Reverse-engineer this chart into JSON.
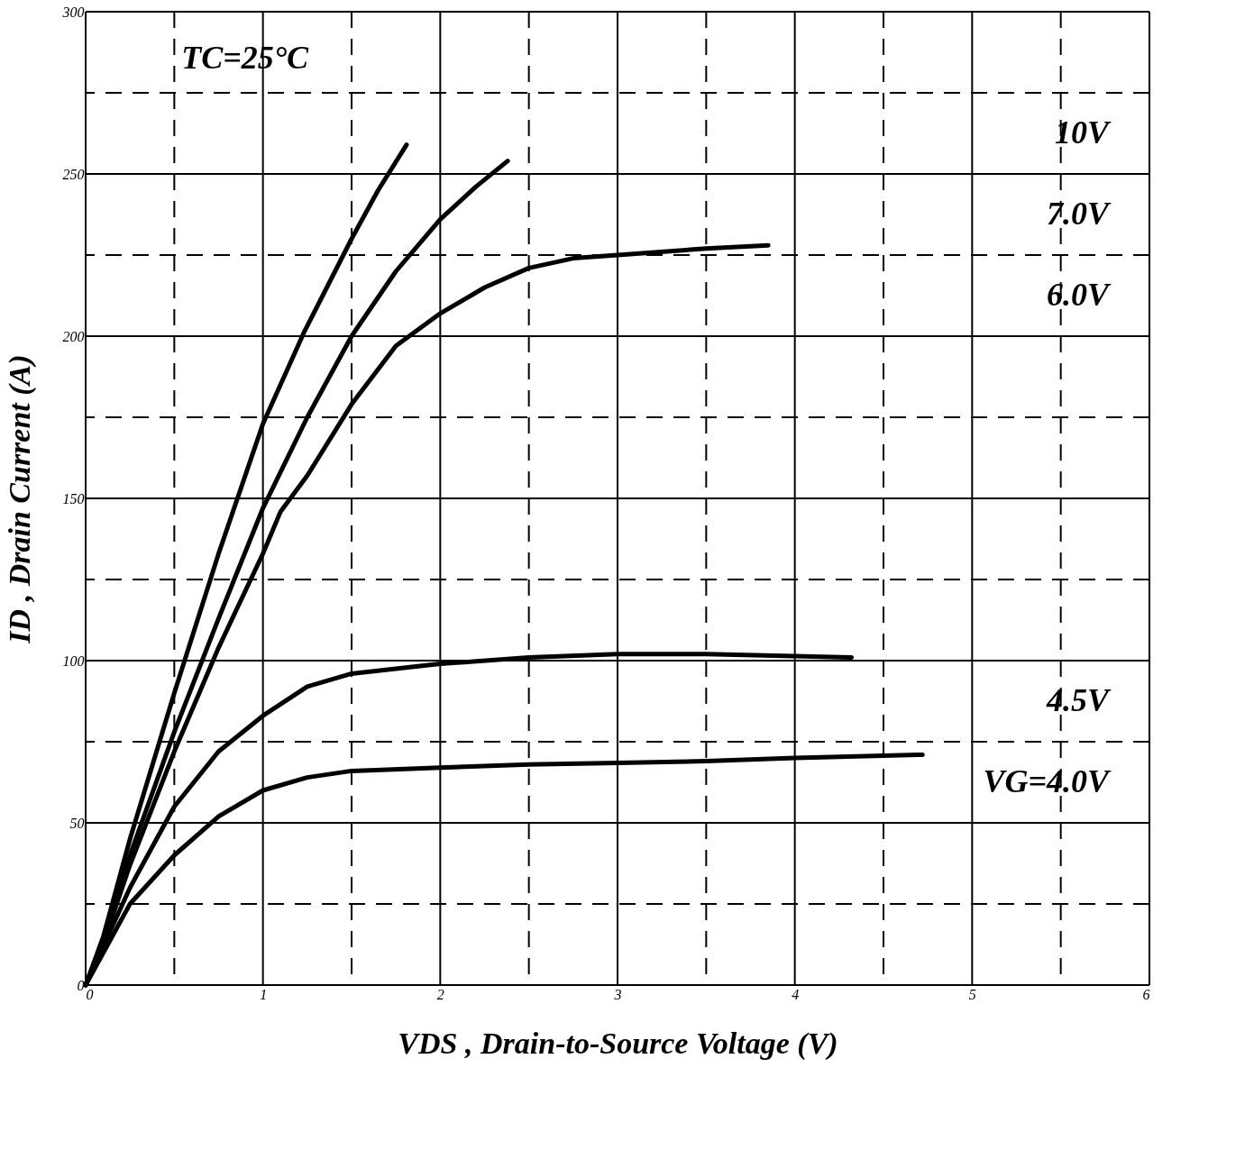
{
  "chart_data": {
    "type": "line",
    "xlabel": "VDS , Drain-to-Source Voltage (V)",
    "ylabel": "ID , Drain Current (A)",
    "xlim": [
      0,
      6
    ],
    "ylim": [
      0,
      300
    ],
    "xticks": [
      0,
      {
        "value": 0.5,
        "label": null
      },
      1,
      {
        "value": 1.5,
        "label": null
      },
      2,
      {
        "value": 2.5,
        "label": null
      },
      3,
      {
        "value": 3.5,
        "label": null
      },
      4,
      {
        "value": 4.5,
        "label": null
      },
      5,
      {
        "value": 5.5,
        "label": null
      },
      6
    ],
    "yticks": [
      0,
      {
        "value": 25,
        "label": null
      },
      50,
      {
        "value": 75,
        "label": null
      },
      100,
      {
        "value": 125,
        "label": null
      },
      150,
      {
        "value": 175,
        "label": null
      },
      200,
      {
        "value": 225,
        "label": null
      },
      250,
      {
        "value": 275,
        "label": null
      },
      300
    ],
    "grid": true,
    "marker": "none",
    "line_style": "solid",
    "series": [
      {
        "name": "10V",
        "color": "#000000",
        "x": [
          0,
          0.1,
          0.25,
          0.5,
          0.75,
          1,
          1.23,
          1.5,
          1.65,
          1.81
        ],
        "values": [
          0,
          15,
          45,
          90,
          133,
          173,
          201,
          230,
          245,
          259
        ]
      },
      {
        "name": "7.0V",
        "color": "#000000",
        "x": [
          0,
          0.1,
          0.25,
          0.5,
          0.75,
          1,
          1.25,
          1.5,
          1.75,
          2,
          2.2,
          2.38
        ],
        "values": [
          0,
          14,
          40,
          78,
          113,
          147,
          175,
          200,
          220,
          236,
          246,
          254
        ]
      },
      {
        "name": "6.0V",
        "color": "#000000",
        "x": [
          0,
          0.1,
          0.25,
          0.5,
          0.75,
          1,
          1.1,
          1.25,
          1.5,
          1.75,
          2,
          2.25,
          2.5,
          2.75,
          3,
          3.5,
          3.85
        ],
        "values": [
          0,
          13,
          37,
          72,
          104,
          133,
          146,
          157,
          179,
          197,
          207,
          215,
          221,
          224,
          225,
          227,
          228
        ]
      },
      {
        "name": "4.5V",
        "color": "#000000",
        "x": [
          0,
          0.25,
          0.5,
          0.75,
          1,
          1.25,
          1.5,
          2,
          2.5,
          3,
          3.5,
          4.32
        ],
        "values": [
          0,
          30,
          55,
          72,
          83,
          92,
          96,
          99,
          101,
          102,
          102,
          101
        ]
      },
      {
        "name": "VG=4.0V",
        "color": "#000000",
        "x": [
          0,
          0.25,
          0.5,
          0.75,
          1,
          1.25,
          1.5,
          2,
          2.5,
          3,
          3.5,
          4,
          4.72
        ],
        "values": [
          0,
          25,
          40,
          52,
          60,
          64,
          66,
          67,
          68,
          68.5,
          69,
          70,
          71
        ]
      }
    ],
    "annotations": [
      "TC=25°C"
    ]
  }
}
